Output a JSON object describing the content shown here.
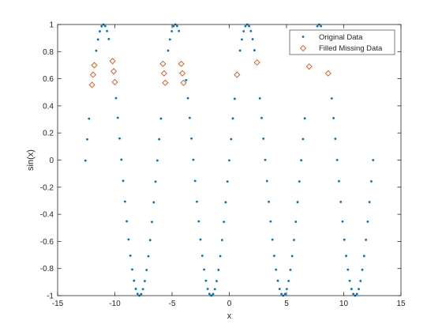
{
  "chart_data": {
    "type": "scatter",
    "title": "",
    "xlabel": "x",
    "ylabel": "sin(x)",
    "xlim": [
      -15,
      15
    ],
    "ylim": [
      -1,
      1
    ],
    "xticks": [
      -15,
      -10,
      -5,
      0,
      5,
      10,
      15
    ],
    "xtick_labels": [
      "-15",
      "-10",
      "-5",
      "0",
      "5",
      "10",
      "15"
    ],
    "yticks": [
      -1,
      -0.8,
      -0.6,
      -0.4,
      -0.2,
      0,
      0.2,
      0.4,
      0.6,
      0.8,
      1
    ],
    "ytick_labels": [
      "-1",
      "-0.8",
      "-0.6",
      "-0.4",
      "-0.2",
      "0",
      "0.2",
      "0.4",
      "0.6",
      "0.8",
      "1"
    ],
    "grid": false,
    "legend_position": "top-right",
    "series": [
      {
        "name": "Original Data",
        "marker": "dot",
        "color": "#0072BD",
        "function": "sin(x)",
        "x_range": [
          -12.57,
          12.57
        ],
        "x_step": 0.1571,
        "missing_x_intervals": [
          [
            -12.1,
            -11.7
          ],
          [
            -10.4,
            -9.9
          ],
          [
            -5.9,
            -5.5
          ],
          [
            -4.3,
            -3.8
          ],
          [
            0.5,
            0.9
          ],
          [
            2.2,
            2.6
          ],
          [
            6.7,
            7.2
          ],
          [
            8.4,
            8.9
          ]
        ],
        "x": [
          -12.566,
          -10.996,
          -9.425,
          -7.854,
          -6.283,
          -4.712,
          -3.142,
          -1.571,
          0,
          1.571,
          3.142,
          4.712,
          6.283,
          7.854,
          9.425,
          10.996,
          12.566
        ],
        "y": [
          0,
          1,
          0,
          -1,
          0,
          1,
          0,
          -1,
          0,
          1,
          0,
          -1,
          0,
          1,
          0,
          -1,
          0
        ]
      },
      {
        "name": "Filled Missing Data",
        "marker": "diamond",
        "color": "#D95319",
        "x": [
          -12.0,
          -11.9,
          -11.8,
          -10.2,
          -10.1,
          -10.0,
          -5.8,
          -5.7,
          -5.6,
          -4.2,
          -4.1,
          -4.0,
          0.68,
          2.42,
          6.98,
          8.64
        ],
        "y": [
          0.555,
          0.63,
          0.7,
          0.73,
          0.655,
          0.575,
          0.71,
          0.64,
          0.57,
          0.71,
          0.64,
          0.57,
          0.63,
          0.72,
          0.69,
          0.64
        ]
      }
    ]
  }
}
